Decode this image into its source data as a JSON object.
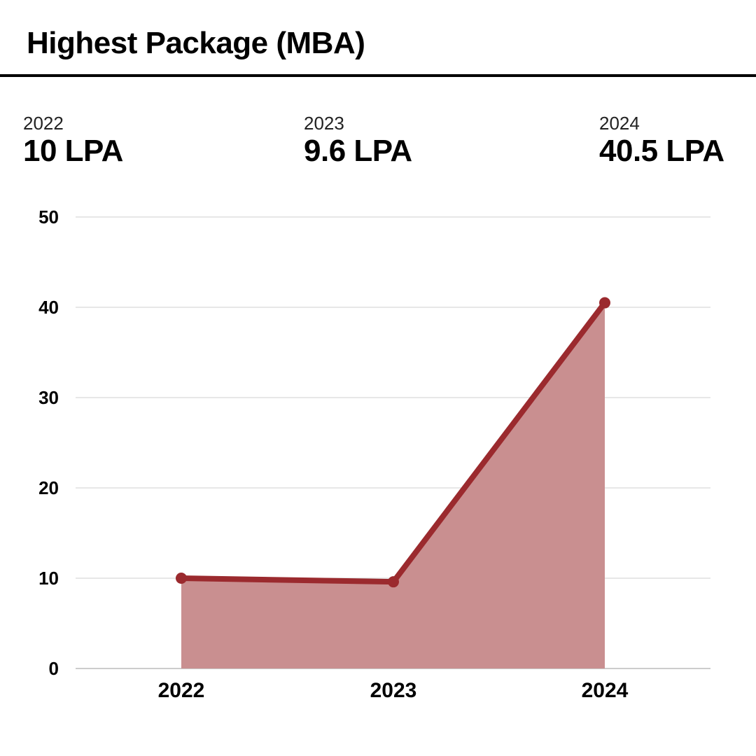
{
  "chart_data": {
    "type": "area",
    "title": "Highest Package (MBA)",
    "categories": [
      "2022",
      "2023",
      "2024"
    ],
    "series": [
      {
        "values": [
          10,
          9.6,
          40.5
        ]
      }
    ],
    "ylim": [
      0,
      50
    ],
    "yticks": [
      0,
      10,
      20,
      30,
      40,
      50
    ],
    "grid": true,
    "summary": [
      {
        "year": "2022",
        "label": "10 LPA"
      },
      {
        "year": "2023",
        "label": "9.6 LPA"
      },
      {
        "year": "2024",
        "label": "40.5 LPA"
      }
    ]
  },
  "colors": {
    "line": "#9b2a2e",
    "fill": "#c98f90",
    "grid": "#cfcfcf"
  }
}
